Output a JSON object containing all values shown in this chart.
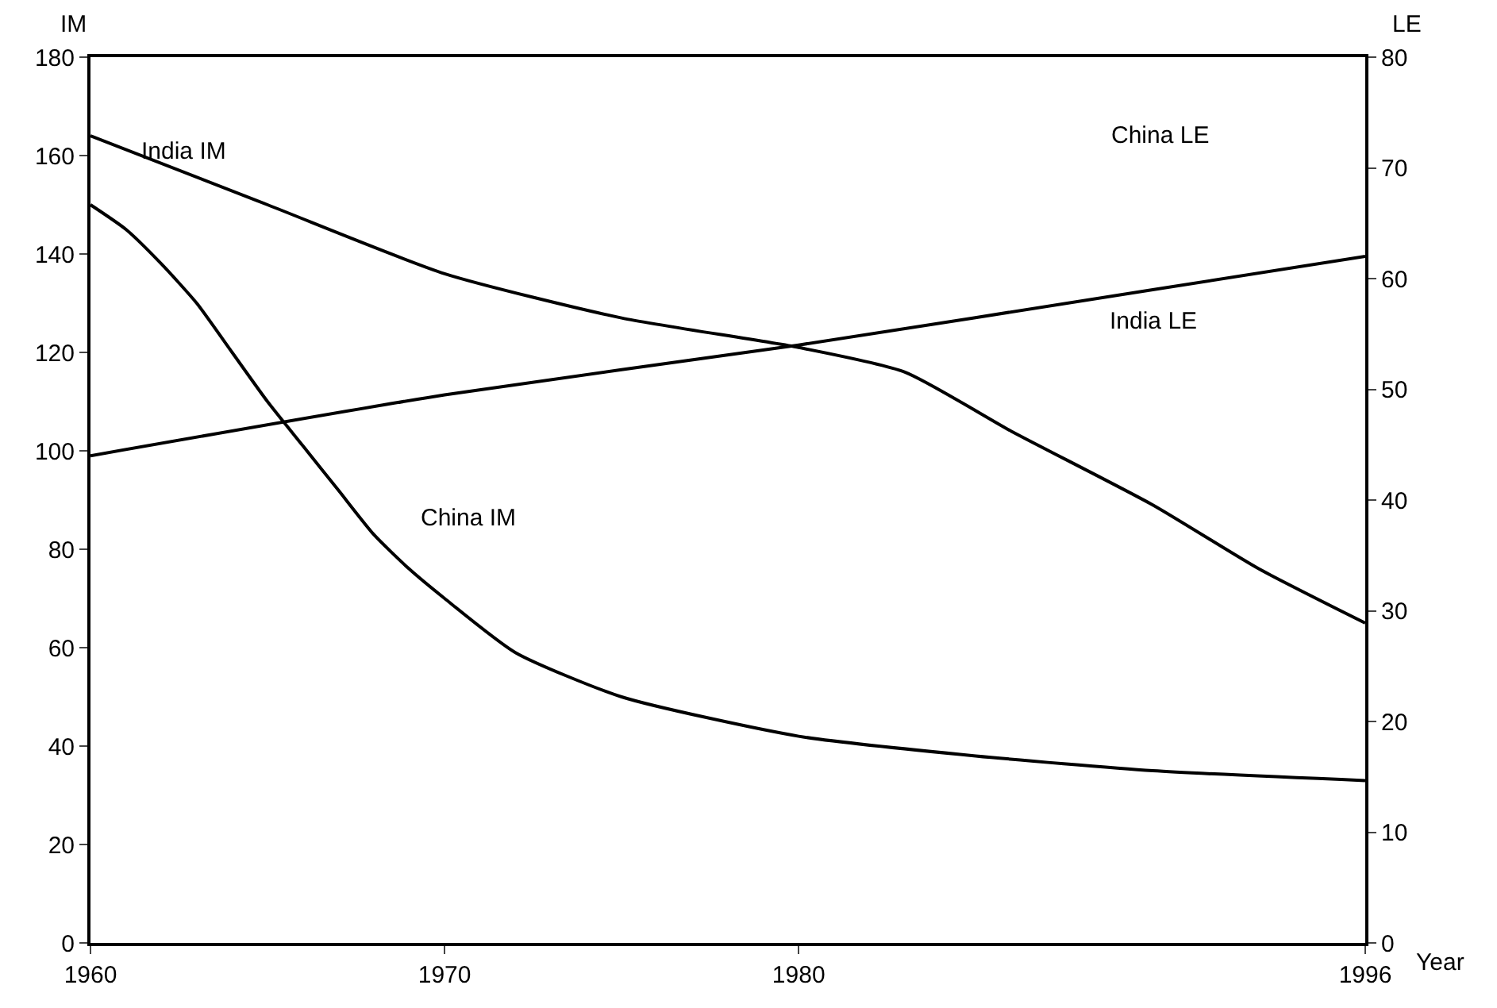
{
  "chart_data": {
    "type": "line",
    "xlabel": "Year",
    "ylabel": "IM",
    "y2label": "LE",
    "xlim": [
      1960,
      1996
    ],
    "xticks": [
      1960,
      1970,
      1980,
      1996
    ],
    "ylim": [
      0,
      180
    ],
    "yticks": [
      0,
      20,
      40,
      60,
      80,
      100,
      120,
      140,
      160,
      180
    ],
    "y2lim": [
      0,
      80
    ],
    "y2ticks": [
      0,
      10,
      20,
      30,
      40,
      50,
      60,
      70,
      80
    ],
    "legend": false,
    "marker": "none",
    "line_style": "solid",
    "annotations": [
      "China LE"
    ],
    "series": [
      {
        "name": "India IM",
        "color": "#000000",
        "x": [
          1960,
          1965,
          1970,
          1975,
          1980,
          1983,
          1986,
          1990,
          1993,
          1996
        ],
        "values": [
          164,
          150,
          136,
          127,
          121,
          116,
          104,
          89,
          76,
          65
        ]
      },
      {
        "name": "China IM",
        "color": "#000000",
        "x": [
          1960,
          1961,
          1962,
          1963,
          1964,
          1965,
          1966,
          1967,
          1968,
          1969,
          1970,
          1972,
          1975,
          1980,
          1985,
          1990,
          1996
        ],
        "values": [
          150,
          145,
          138,
          130,
          120,
          110,
          101,
          92,
          83,
          76,
          70,
          59,
          50,
          42,
          38,
          35,
          33
        ]
      },
      {
        "name": "India LE",
        "color": "#000000",
        "axis": "y2",
        "x": [
          1960,
          1970,
          1980,
          1990,
          1996
        ],
        "values": [
          44,
          49.5,
          54,
          59,
          62
        ]
      }
    ]
  }
}
